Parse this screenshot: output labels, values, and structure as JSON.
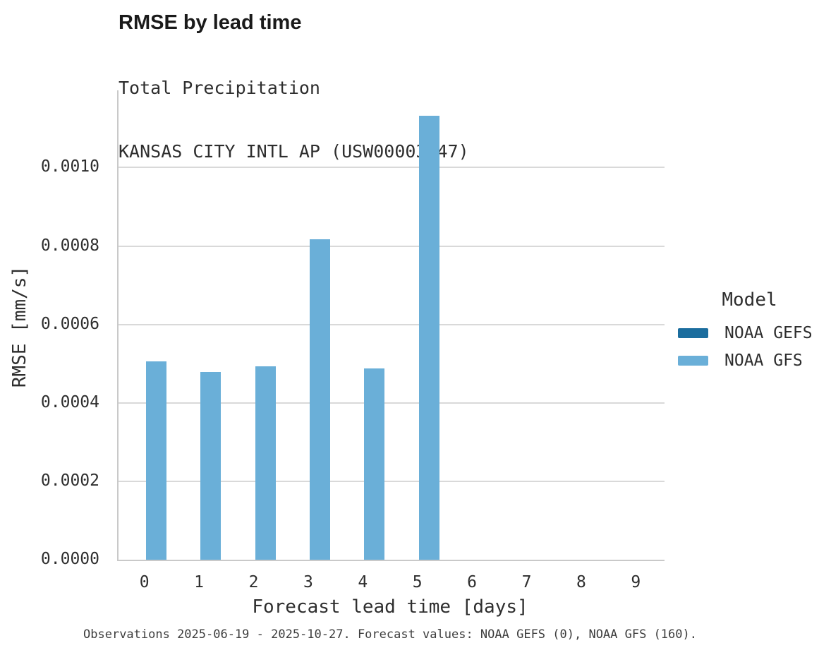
{
  "header": {
    "title": "RMSE by lead time",
    "subtitle_line1": "Total Precipitation",
    "subtitle_line2": "KANSAS CITY INTL AP (USW00003947)"
  },
  "chart_data": {
    "type": "bar",
    "title": "RMSE by lead time",
    "subtitle": [
      "Total Precipitation",
      "KANSAS CITY INTL AP (USW00003947)"
    ],
    "xlabel": "Forecast lead time [days]",
    "ylabel": "RMSE [mm/s]",
    "categories": [
      "0",
      "1",
      "2",
      "3",
      "4",
      "5",
      "6",
      "7",
      "8",
      "9"
    ],
    "series": [
      {
        "name": "NOAA GEFS",
        "color": "#1b6d9e",
        "values": [
          null,
          null,
          null,
          null,
          null,
          null,
          null,
          null,
          null,
          null
        ]
      },
      {
        "name": "NOAA GFS",
        "color": "#6aafd8",
        "values": [
          0.000505,
          0.000478,
          0.000493,
          0.000817,
          0.000487,
          0.001133,
          null,
          null,
          null,
          null
        ]
      }
    ],
    "ylim": [
      0,
      0.001197
    ],
    "ytick_values": [
      0,
      0.0002,
      0.0004,
      0.0006,
      0.0008,
      0.001
    ],
    "ytick_labels": [
      "0.0000",
      "0.0002",
      "0.0004",
      "0.0006",
      "0.0008",
      "0.0010"
    ],
    "grid": "horizontal",
    "legend_title": "Model",
    "legend_position": "right",
    "colors": {
      "noaa_gefs": "#1b6d9e",
      "noaa_gfs": "#6aafd8",
      "gridline": "#d9d9d9",
      "axis_line": "#c9c9c9"
    }
  },
  "legend": {
    "title": "Model",
    "entries": [
      {
        "label": "NOAA GEFS",
        "color": "#1b6d9e"
      },
      {
        "label": "NOAA GFS",
        "color": "#6aafd8"
      }
    ]
  },
  "footnote": "Observations 2025-06-19 - 2025-10-27. Forecast values: NOAA GEFS (0), NOAA GFS (160)."
}
